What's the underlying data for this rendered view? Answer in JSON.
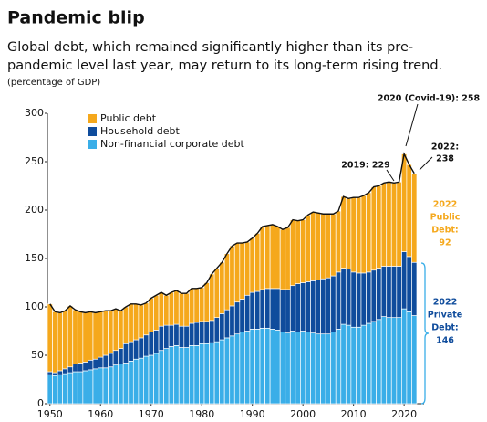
{
  "chart_data": {
    "type": "stacked-bar",
    "title": "Pandemic blip",
    "subtitle": [
      "Global debt, which remained significantly higher than its pre-",
      "pandemic level last year, may return to its long-term rising trend."
    ],
    "unit_note": "(percentage of GDP)",
    "x": [
      1950,
      1951,
      1952,
      1953,
      1954,
      1955,
      1956,
      1957,
      1958,
      1959,
      1960,
      1961,
      1962,
      1963,
      1964,
      1965,
      1966,
      1967,
      1968,
      1969,
      1970,
      1971,
      1972,
      1973,
      1974,
      1975,
      1976,
      1977,
      1978,
      1979,
      1980,
      1981,
      1982,
      1983,
      1984,
      1985,
      1986,
      1987,
      1988,
      1989,
      1990,
      1991,
      1992,
      1993,
      1994,
      1995,
      1996,
      1997,
      1998,
      1999,
      2000,
      2001,
      2002,
      2003,
      2004,
      2005,
      2006,
      2007,
      2008,
      2009,
      2010,
      2011,
      2012,
      2013,
      2014,
      2015,
      2016,
      2017,
      2018,
      2019,
      2020,
      2021,
      2022
    ],
    "series": [
      {
        "name": "Non-financial corporate debt",
        "color": "#3aaee8",
        "values": [
          30,
          29,
          30,
          31,
          32,
          33,
          33,
          34,
          35,
          36,
          37,
          37,
          38,
          40,
          41,
          42,
          44,
          46,
          47,
          49,
          50,
          52,
          55,
          57,
          59,
          60,
          58,
          58,
          60,
          60,
          62,
          62,
          63,
          64,
          66,
          68,
          70,
          72,
          74,
          75,
          77,
          77,
          78,
          78,
          77,
          76,
          74,
          73,
          75,
          74,
          75,
          74,
          73,
          72,
          72,
          72,
          74,
          77,
          82,
          81,
          79,
          79,
          81,
          83,
          85,
          87,
          90,
          89,
          89,
          89,
          98,
          95,
          91
        ]
      },
      {
        "name": "Household debt",
        "color": "#0f4c9c",
        "values": [
          3,
          3,
          4,
          5,
          6,
          8,
          9,
          9,
          10,
          10,
          11,
          13,
          14,
          15,
          16,
          20,
          20,
          20,
          21,
          22,
          24,
          24,
          25,
          24,
          22,
          22,
          22,
          22,
          23,
          24,
          23,
          23,
          23,
          25,
          27,
          29,
          31,
          33,
          34,
          37,
          38,
          39,
          40,
          41,
          42,
          43,
          44,
          45,
          47,
          50,
          50,
          52,
          54,
          56,
          57,
          58,
          58,
          59,
          58,
          58,
          57,
          56,
          54,
          53,
          53,
          53,
          52,
          53,
          53,
          53,
          59,
          57,
          55
        ]
      },
      {
        "name": "Public debt",
        "color": "#f5a81c",
        "values": [
          70,
          63,
          60,
          60,
          63,
          56,
          53,
          51,
          50,
          48,
          47,
          46,
          44,
          43,
          39,
          38,
          39,
          37,
          34,
          33,
          35,
          36,
          35,
          31,
          34,
          35,
          34,
          34,
          36,
          35,
          35,
          40,
          48,
          51,
          53,
          58,
          62,
          61,
          58,
          55,
          56,
          60,
          65,
          65,
          66,
          64,
          62,
          64,
          68,
          65,
          65,
          69,
          71,
          69,
          67,
          66,
          64,
          63,
          74,
          73,
          77,
          78,
          80,
          82,
          86,
          85,
          86,
          87,
          86,
          87,
          101,
          95,
          92
        ]
      }
    ],
    "xlim": [
      1949.5,
      2022.5
    ],
    "xticks": [
      1950,
      1960,
      1970,
      1980,
      1990,
      2000,
      2010,
      2020
    ],
    "ylim": [
      0,
      300
    ],
    "yticks": [
      0,
      50,
      100,
      150,
      200,
      250,
      300
    ],
    "legend": "upper left",
    "annotations": [
      {
        "lines": [
          "2020 (Covid-19): 258"
        ],
        "color": "#111111"
      },
      {
        "lines": [
          "2019: 229"
        ],
        "color": "#111111"
      },
      {
        "lines": [
          "2022:",
          "238"
        ],
        "color": "#111111"
      },
      {
        "lines": [
          "2022",
          "Public",
          "Debt:",
          "92"
        ],
        "color": "#f5a81c"
      },
      {
        "lines": [
          "2022",
          "Private",
          "Debt:",
          "146"
        ],
        "color": "#0f4c9c"
      }
    ]
  }
}
